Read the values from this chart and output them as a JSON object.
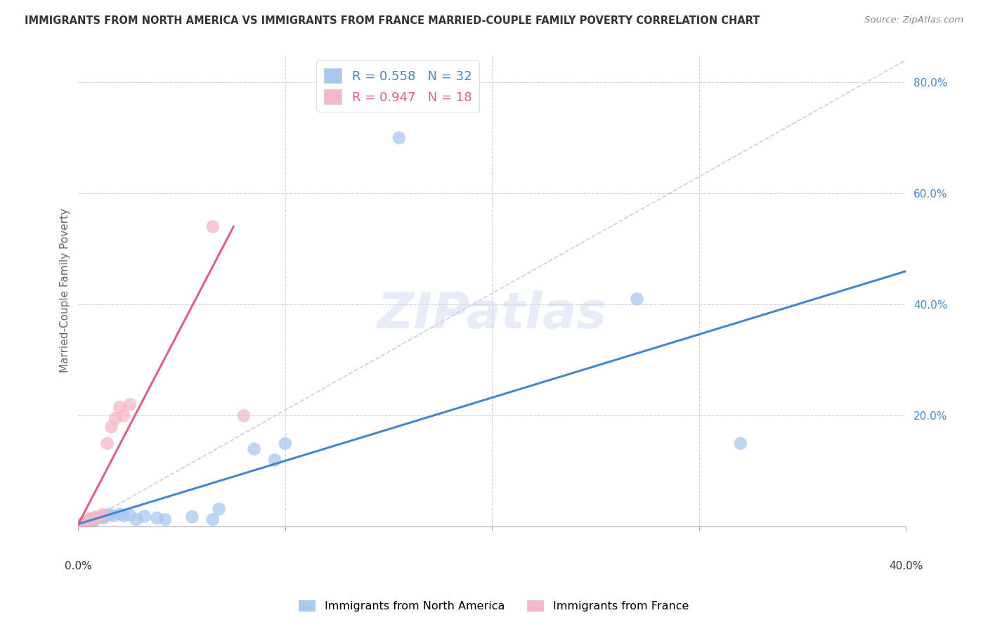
{
  "title": "IMMIGRANTS FROM NORTH AMERICA VS IMMIGRANTS FROM FRANCE MARRIED-COUPLE FAMILY POVERTY CORRELATION CHART",
  "source": "Source: ZipAtlas.com",
  "ylabel": "Married-Couple Family Poverty",
  "xlim": [
    0.0,
    0.4
  ],
  "ylim": [
    0.0,
    0.85
  ],
  "R_blue": 0.558,
  "N_blue": 32,
  "R_pink": 0.947,
  "N_pink": 18,
  "color_blue": "#A8C8F0",
  "color_pink": "#F4B8C8",
  "line_color_blue": "#4488CC",
  "line_color_pink": "#E06080",
  "diagonal_color": "#C8C8D8",
  "legend_label_blue": "Immigrants from North America",
  "legend_label_pink": "Immigrants from France",
  "blue_points": [
    [
      0.001,
      0.003
    ],
    [
      0.002,
      0.005
    ],
    [
      0.003,
      0.006
    ],
    [
      0.003,
      0.004
    ],
    [
      0.004,
      0.008
    ],
    [
      0.005,
      0.01
    ],
    [
      0.006,
      0.012
    ],
    [
      0.007,
      0.01
    ],
    [
      0.008,
      0.013
    ],
    [
      0.009,
      0.015
    ],
    [
      0.01,
      0.017
    ],
    [
      0.011,
      0.018
    ],
    [
      0.012,
      0.016
    ],
    [
      0.013,
      0.019
    ],
    [
      0.015,
      0.022
    ],
    [
      0.017,
      0.02
    ],
    [
      0.02,
      0.023
    ],
    [
      0.022,
      0.02
    ],
    [
      0.025,
      0.021
    ],
    [
      0.028,
      0.013
    ],
    [
      0.032,
      0.019
    ],
    [
      0.038,
      0.016
    ],
    [
      0.042,
      0.013
    ],
    [
      0.055,
      0.018
    ],
    [
      0.065,
      0.013
    ],
    [
      0.068,
      0.032
    ],
    [
      0.085,
      0.14
    ],
    [
      0.095,
      0.12
    ],
    [
      0.1,
      0.15
    ],
    [
      0.155,
      0.7
    ],
    [
      0.27,
      0.41
    ],
    [
      0.32,
      0.15
    ]
  ],
  "pink_points": [
    [
      0.001,
      0.003
    ],
    [
      0.002,
      0.005
    ],
    [
      0.003,
      0.008
    ],
    [
      0.004,
      0.01
    ],
    [
      0.005,
      0.012
    ],
    [
      0.006,
      0.015
    ],
    [
      0.007,
      0.013
    ],
    [
      0.008,
      0.017
    ],
    [
      0.01,
      0.018
    ],
    [
      0.012,
      0.022
    ],
    [
      0.014,
      0.15
    ],
    [
      0.016,
      0.18
    ],
    [
      0.018,
      0.195
    ],
    [
      0.02,
      0.215
    ],
    [
      0.022,
      0.2
    ],
    [
      0.025,
      0.22
    ],
    [
      0.065,
      0.54
    ],
    [
      0.08,
      0.2
    ]
  ],
  "blue_line_x": [
    0.0,
    0.4
  ],
  "blue_line_y": [
    0.005,
    0.46
  ],
  "pink_line_x": [
    0.0,
    0.075
  ],
  "pink_line_y": [
    0.005,
    0.54
  ]
}
